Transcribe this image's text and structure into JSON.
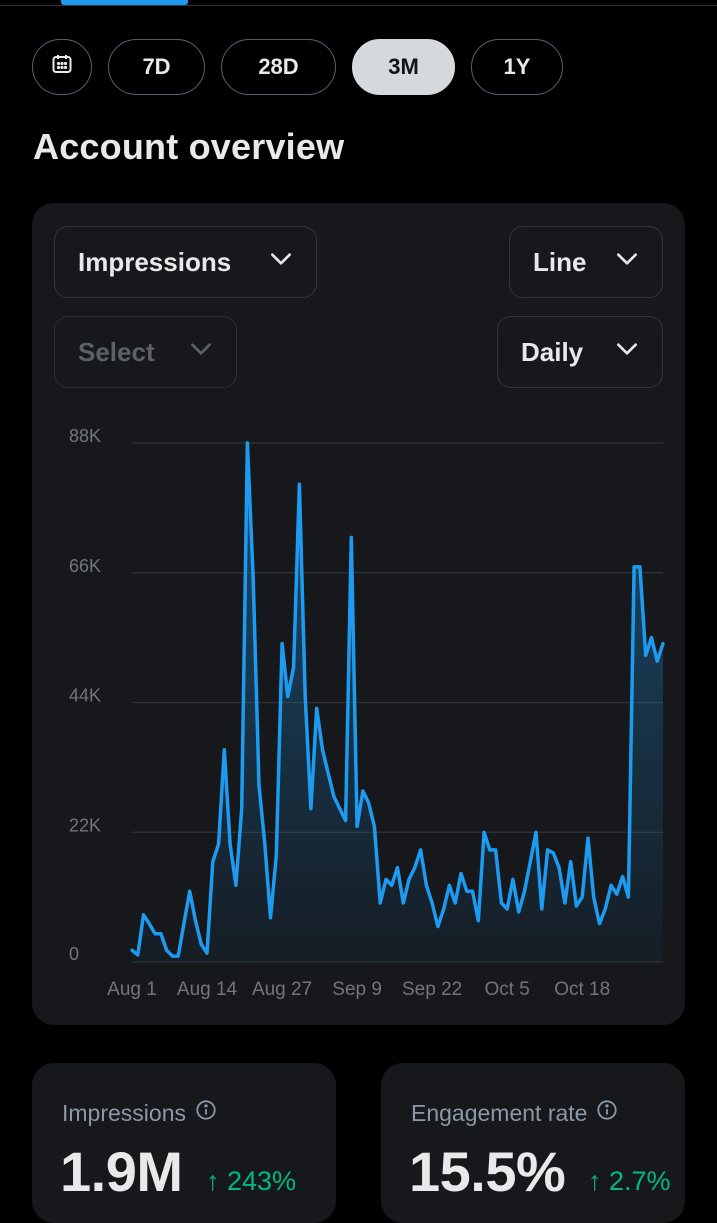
{
  "colors": {
    "accent": "#1d9bf0",
    "positive": "#00ba7c",
    "background": "#000000",
    "card": "#16181c",
    "muted": "#8b98a5"
  },
  "range_picker": {
    "calendar_icon": "calendar-icon",
    "options": [
      "7D",
      "28D",
      "3M",
      "1Y"
    ],
    "selected": "3M"
  },
  "page": {
    "title": "Account overview"
  },
  "controls": {
    "metric": "Impressions",
    "chart_type": "Line",
    "compare": "Select",
    "interval": "Daily",
    "chevron_icon": "chevron-down-icon"
  },
  "chart_data": {
    "type": "area",
    "series": [
      {
        "name": "Impressions",
        "values": [
          2000,
          1200,
          8000,
          6500,
          4800,
          4800,
          2000,
          1000,
          1000,
          6500,
          12000,
          7000,
          3000,
          1500,
          17000,
          20000,
          36000,
          20000,
          13000,
          26000,
          88000,
          65000,
          30000,
          20000,
          7500,
          18000,
          54000,
          45000,
          50000,
          81000,
          45000,
          26000,
          43000,
          36000,
          32000,
          28000,
          26000,
          24000,
          72000,
          23000,
          29000,
          27000,
          23000,
          10000,
          14000,
          13000,
          16000,
          10000,
          14000,
          16000,
          19000,
          13000,
          10000,
          6000,
          9000,
          13000,
          10000,
          15000,
          12000,
          12000,
          7000,
          22000,
          19000,
          19000,
          10000,
          9000,
          14000,
          8500,
          12000,
          17000,
          22000,
          9000,
          19000,
          18500,
          16000,
          10000,
          17000,
          9500,
          11000,
          21000,
          11000,
          6500,
          9000,
          13000,
          11500,
          14500,
          11000,
          67000,
          67000,
          52000,
          55000,
          51000,
          54000
        ]
      }
    ],
    "x_tick_labels": [
      "Aug 1",
      "Aug 14",
      "Aug 27",
      "Sep 9",
      "Sep 22",
      "Oct 5",
      "Oct 18"
    ],
    "y_tick_labels": [
      "0",
      "22K",
      "44K",
      "66K",
      "88K"
    ],
    "ylim": [
      0,
      88000
    ],
    "grid": true
  },
  "stats": [
    {
      "label": "Impressions",
      "value": "1.9M",
      "change": "↑ 243%",
      "info_icon": "info-icon"
    },
    {
      "label": "Engagement rate",
      "value": "15.5%",
      "change": "↑ 2.7%",
      "info_icon": "info-icon"
    }
  ]
}
